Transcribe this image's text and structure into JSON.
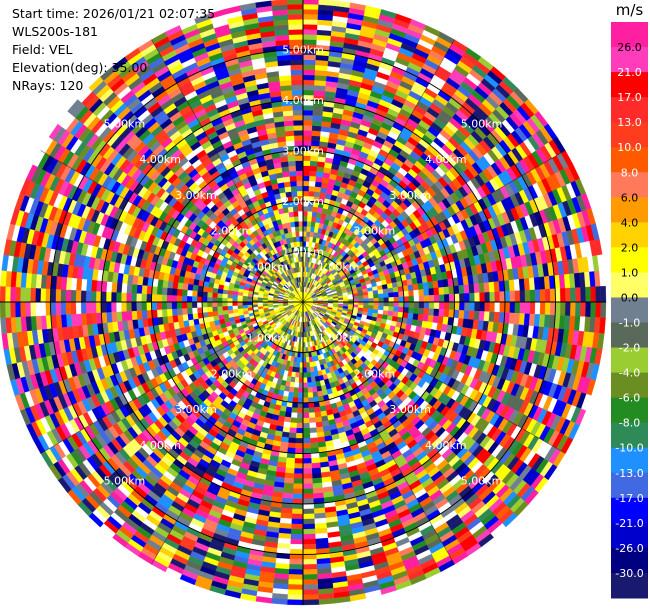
{
  "header": {
    "start_time": "Start time: 2026/01/21 02:07:35",
    "station": "WLS200s-181",
    "field": "Field: VEL",
    "elevation": "Elevation(deg): 35.00",
    "nrays": "NRays: 120"
  },
  "chart_data": {
    "type": "heatmap",
    "projection": "polar-ppi",
    "field": "VEL",
    "n_rays": 120,
    "elevation_deg": 35.0,
    "range_max_km": 6.0,
    "range_rings_km": [
      1,
      2,
      3,
      4,
      5
    ],
    "ring_labels": [
      "1.00km",
      "2.00km",
      "3.00km",
      "4.00km",
      "5.00km"
    ],
    "colorbar": {
      "unit": "m/s",
      "ticks": [
        "26.0",
        "21.0",
        "17.0",
        "13.0",
        "10.0",
        "8.0",
        "6.0",
        "4.0",
        "2.0",
        "1.0",
        "0.0",
        "-1.0",
        "-2.0",
        "-4.0",
        "-6.0",
        "-8.0",
        "-10.0",
        "-13.0",
        "-17.0",
        "-21.0",
        "-26.0",
        "-30.0"
      ],
      "colors": [
        "#ff1fa0",
        "#ff3dbb",
        "#ff0000",
        "#ff2a2a",
        "#ff3c1e",
        "#ff5a00",
        "#ff7a5a",
        "#ff9a00",
        "#ffd200",
        "#ffff00",
        "#ffff66",
        "#708090",
        "#5a6a5a",
        "#9acd32",
        "#6b8e23",
        "#228b22",
        "#2e8b57",
        "#1e90ff",
        "#4169e1",
        "#0000ff",
        "#0000cd",
        "#000080",
        "#191970"
      ]
    },
    "description_inner": "mostly low velocities (-2 to 2 m/s) within ~1 km",
    "description_outer": "noisy full-range values beyond ~2 km"
  }
}
